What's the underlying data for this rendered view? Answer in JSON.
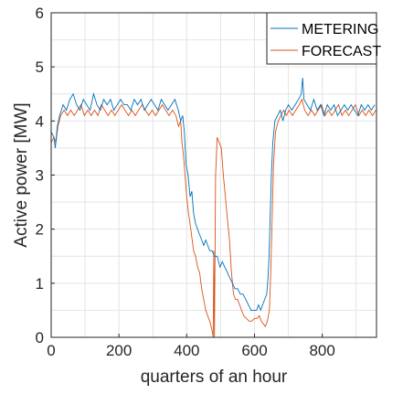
{
  "chart_data": {
    "type": "line",
    "xlabel": "quarters of an hour",
    "ylabel": "Active power [MW]",
    "xlim": [
      0,
      960
    ],
    "ylim": [
      0,
      6
    ],
    "xticks": [
      0,
      200,
      400,
      600,
      800
    ],
    "yticks": [
      0,
      1,
      2,
      3,
      4,
      5,
      6
    ],
    "grid": true,
    "legend_position": "top-right",
    "series": [
      {
        "name": "METERING",
        "color": "#0072BD",
        "points": [
          [
            0,
            3.8
          ],
          [
            8,
            3.7
          ],
          [
            12,
            3.5
          ],
          [
            18,
            3.9
          ],
          [
            25,
            4.1
          ],
          [
            35,
            4.3
          ],
          [
            45,
            4.2
          ],
          [
            55,
            4.4
          ],
          [
            65,
            4.5
          ],
          [
            75,
            4.3
          ],
          [
            85,
            4.2
          ],
          [
            95,
            4.4
          ],
          [
            105,
            4.3
          ],
          [
            115,
            4.2
          ],
          [
            125,
            4.5
          ],
          [
            135,
            4.3
          ],
          [
            145,
            4.2
          ],
          [
            155,
            4.4
          ],
          [
            165,
            4.3
          ],
          [
            175,
            4.4
          ],
          [
            185,
            4.2
          ],
          [
            195,
            4.3
          ],
          [
            205,
            4.4
          ],
          [
            215,
            4.3
          ],
          [
            225,
            4.3
          ],
          [
            235,
            4.2
          ],
          [
            245,
            4.4
          ],
          [
            255,
            4.3
          ],
          [
            265,
            4.4
          ],
          [
            275,
            4.2
          ],
          [
            285,
            4.3
          ],
          [
            295,
            4.4
          ],
          [
            305,
            4.3
          ],
          [
            315,
            4.2
          ],
          [
            325,
            4.4
          ],
          [
            335,
            4.3
          ],
          [
            345,
            4.2
          ],
          [
            355,
            4.3
          ],
          [
            365,
            4.4
          ],
          [
            375,
            4.2
          ],
          [
            382,
            4.0
          ],
          [
            388,
            4.1
          ],
          [
            393,
            3.8
          ],
          [
            398,
            3.2
          ],
          [
            404,
            3.0
          ],
          [
            410,
            2.6
          ],
          [
            415,
            2.7
          ],
          [
            420,
            2.3
          ],
          [
            426,
            2.1
          ],
          [
            432,
            2.0
          ],
          [
            438,
            1.9
          ],
          [
            444,
            1.8
          ],
          [
            450,
            1.7
          ],
          [
            456,
            1.8
          ],
          [
            462,
            1.7
          ],
          [
            468,
            1.6
          ],
          [
            475,
            1.6
          ],
          [
            482,
            1.5
          ],
          [
            490,
            1.5
          ],
          [
            498,
            1.3
          ],
          [
            505,
            1.4
          ],
          [
            512,
            1.3
          ],
          [
            520,
            1.2
          ],
          [
            527,
            1.1
          ],
          [
            535,
            1.0
          ],
          [
            542,
            0.9
          ],
          [
            550,
            0.9
          ],
          [
            558,
            0.8
          ],
          [
            566,
            0.8
          ],
          [
            574,
            0.7
          ],
          [
            582,
            0.6
          ],
          [
            590,
            0.5
          ],
          [
            598,
            0.5
          ],
          [
            606,
            0.5
          ],
          [
            612,
            0.6
          ],
          [
            618,
            0.5
          ],
          [
            624,
            0.6
          ],
          [
            630,
            0.7
          ],
          [
            636,
            0.8
          ],
          [
            640,
            1.1
          ],
          [
            643,
            1.5
          ],
          [
            646,
            2.2
          ],
          [
            650,
            3.0
          ],
          [
            654,
            3.6
          ],
          [
            660,
            4.0
          ],
          [
            668,
            4.1
          ],
          [
            676,
            4.2
          ],
          [
            684,
            4.0
          ],
          [
            692,
            4.2
          ],
          [
            700,
            4.3
          ],
          [
            710,
            4.2
          ],
          [
            720,
            4.3
          ],
          [
            730,
            4.4
          ],
          [
            738,
            4.5
          ],
          [
            742,
            4.8
          ],
          [
            746,
            4.4
          ],
          [
            755,
            4.3
          ],
          [
            765,
            4.2
          ],
          [
            775,
            4.4
          ],
          [
            785,
            4.2
          ],
          [
            795,
            4.3
          ],
          [
            805,
            4.1
          ],
          [
            815,
            4.3
          ],
          [
            825,
            4.2
          ],
          [
            835,
            4.3
          ],
          [
            845,
            4.1
          ],
          [
            855,
            4.2
          ],
          [
            865,
            4.3
          ],
          [
            875,
            4.2
          ],
          [
            885,
            4.3
          ],
          [
            895,
            4.2
          ],
          [
            905,
            4.1
          ],
          [
            915,
            4.3
          ],
          [
            925,
            4.2
          ],
          [
            935,
            4.3
          ],
          [
            945,
            4.2
          ],
          [
            955,
            4.3
          ]
        ]
      },
      {
        "name": "FORECAST",
        "color": "#D95319",
        "points": [
          [
            0,
            3.6
          ],
          [
            8,
            3.7
          ],
          [
            14,
            3.6
          ],
          [
            20,
            3.9
          ],
          [
            28,
            4.1
          ],
          [
            38,
            4.2
          ],
          [
            48,
            4.1
          ],
          [
            58,
            4.2
          ],
          [
            68,
            4.1
          ],
          [
            78,
            4.2
          ],
          [
            88,
            4.3
          ],
          [
            98,
            4.1
          ],
          [
            108,
            4.2
          ],
          [
            118,
            4.1
          ],
          [
            128,
            4.2
          ],
          [
            138,
            4.1
          ],
          [
            148,
            4.3
          ],
          [
            158,
            4.2
          ],
          [
            168,
            4.1
          ],
          [
            178,
            4.2
          ],
          [
            188,
            4.1
          ],
          [
            198,
            4.2
          ],
          [
            208,
            4.3
          ],
          [
            218,
            4.2
          ],
          [
            228,
            4.1
          ],
          [
            238,
            4.2
          ],
          [
            248,
            4.1
          ],
          [
            258,
            4.2
          ],
          [
            268,
            4.3
          ],
          [
            278,
            4.2
          ],
          [
            288,
            4.1
          ],
          [
            298,
            4.2
          ],
          [
            308,
            4.1
          ],
          [
            318,
            4.2
          ],
          [
            328,
            4.3
          ],
          [
            338,
            4.2
          ],
          [
            348,
            4.1
          ],
          [
            358,
            4.2
          ],
          [
            368,
            4.1
          ],
          [
            376,
            3.9
          ],
          [
            382,
            4.0
          ],
          [
            386,
            3.6
          ],
          [
            390,
            3.4
          ],
          [
            395,
            3.0
          ],
          [
            400,
            2.6
          ],
          [
            405,
            2.3
          ],
          [
            410,
            2.1
          ],
          [
            416,
            1.8
          ],
          [
            420,
            1.6
          ],
          [
            426,
            1.5
          ],
          [
            432,
            1.3
          ],
          [
            438,
            1.2
          ],
          [
            444,
            0.9
          ],
          [
            450,
            0.7
          ],
          [
            456,
            0.5
          ],
          [
            462,
            0.4
          ],
          [
            468,
            0.3
          ],
          [
            474,
            0.15
          ],
          [
            478,
            0.0
          ],
          [
            480,
            1.6
          ],
          [
            482,
            0.0
          ],
          [
            485,
            3.0
          ],
          [
            490,
            3.7
          ],
          [
            496,
            3.6
          ],
          [
            502,
            3.5
          ],
          [
            508,
            3.0
          ],
          [
            514,
            2.6
          ],
          [
            520,
            2.2
          ],
          [
            526,
            1.8
          ],
          [
            532,
            1.2
          ],
          [
            538,
            0.8
          ],
          [
            544,
            0.7
          ],
          [
            550,
            0.7
          ],
          [
            556,
            0.6
          ],
          [
            562,
            0.5
          ],
          [
            568,
            0.4
          ],
          [
            576,
            0.35
          ],
          [
            584,
            0.3
          ],
          [
            592,
            0.3
          ],
          [
            600,
            0.35
          ],
          [
            608,
            0.35
          ],
          [
            614,
            0.4
          ],
          [
            620,
            0.3
          ],
          [
            626,
            0.25
          ],
          [
            632,
            0.2
          ],
          [
            638,
            0.3
          ],
          [
            644,
            0.5
          ],
          [
            648,
            1.2
          ],
          [
            652,
            2.2
          ],
          [
            656,
            3.2
          ],
          [
            662,
            3.8
          ],
          [
            670,
            4.0
          ],
          [
            678,
            4.1
          ],
          [
            686,
            4.2
          ],
          [
            694,
            4.1
          ],
          [
            702,
            4.2
          ],
          [
            712,
            4.1
          ],
          [
            722,
            4.2
          ],
          [
            732,
            4.3
          ],
          [
            740,
            4.4
          ],
          [
            748,
            4.2
          ],
          [
            758,
            4.1
          ],
          [
            768,
            4.2
          ],
          [
            778,
            4.1
          ],
          [
            788,
            4.2
          ],
          [
            798,
            4.3
          ],
          [
            808,
            4.1
          ],
          [
            818,
            4.2
          ],
          [
            828,
            4.1
          ],
          [
            838,
            4.2
          ],
          [
            848,
            4.3
          ],
          [
            858,
            4.1
          ],
          [
            868,
            4.2
          ],
          [
            878,
            4.1
          ],
          [
            888,
            4.2
          ],
          [
            898,
            4.3
          ],
          [
            908,
            4.1
          ],
          [
            918,
            4.2
          ],
          [
            928,
            4.1
          ],
          [
            938,
            4.2
          ],
          [
            948,
            4.1
          ],
          [
            958,
            4.2
          ]
        ]
      }
    ]
  }
}
